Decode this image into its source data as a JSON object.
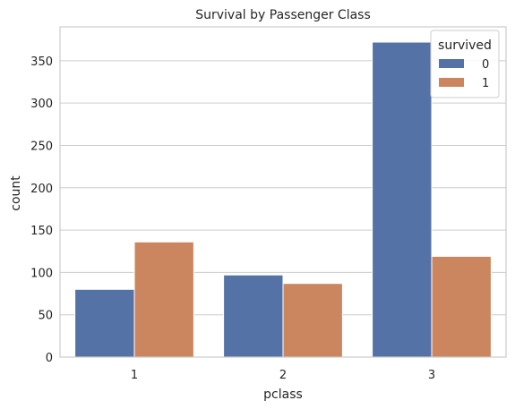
{
  "chart_data": {
    "type": "bar",
    "title": "Survival by Passenger Class",
    "xlabel": "pclass",
    "ylabel": "count",
    "categories": [
      "1",
      "2",
      "3"
    ],
    "series": [
      {
        "name": "0",
        "color": "#5572A7",
        "values": [
          80,
          97,
          372
        ]
      },
      {
        "name": "1",
        "color": "#CC865F",
        "values": [
          136,
          87,
          119
        ]
      }
    ],
    "ylim": [
      0,
      390
    ],
    "yticks": [
      0,
      50,
      100,
      150,
      200,
      250,
      300,
      350
    ],
    "grid": true,
    "legend": {
      "title": "survived",
      "placement": "top-right"
    }
  }
}
